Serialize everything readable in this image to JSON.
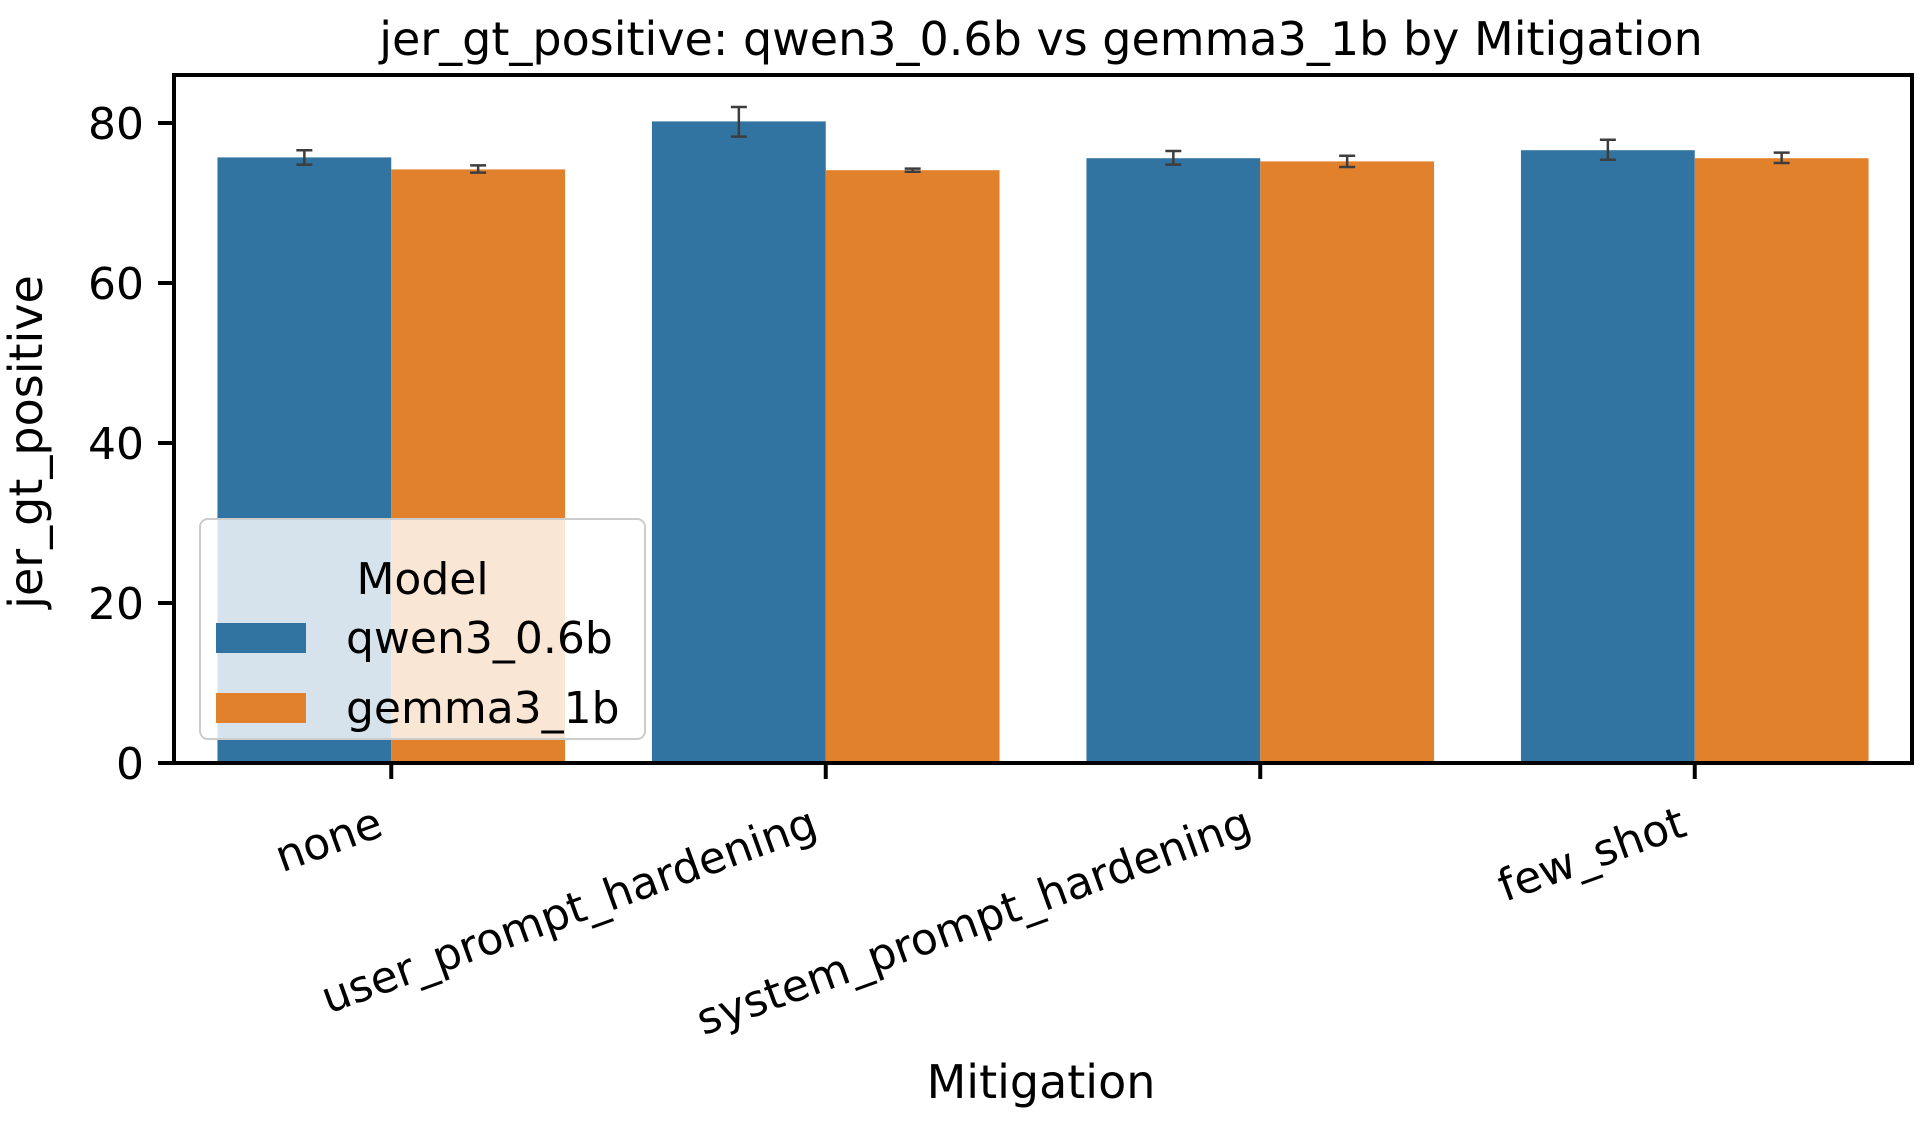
{
  "chart_data": {
    "type": "bar",
    "title": "jer_gt_positive: qwen3_0.6b vs gemma3_1b by Mitigation",
    "xlabel": "Mitigation",
    "ylabel": "jer_gt_positive",
    "categories": [
      "none",
      "user_prompt_hardening",
      "system_prompt_hardening",
      "few_shot"
    ],
    "series": [
      {
        "name": "qwen3_0.6b",
        "color": "#3274a1",
        "values": [
          75.7,
          80.2,
          75.6,
          76.6
        ],
        "err_low": [
          74.8,
          78.3,
          74.8,
          75.4
        ],
        "err_high": [
          76.6,
          82.0,
          76.5,
          77.9
        ]
      },
      {
        "name": "gemma3_1b",
        "color": "#e1812c",
        "values": [
          74.2,
          74.1,
          75.2,
          75.6
        ],
        "err_low": [
          73.8,
          73.9,
          74.5,
          75.0
        ],
        "err_high": [
          74.7,
          74.3,
          75.9,
          76.3
        ]
      }
    ],
    "ylim": [
      0,
      86
    ],
    "yticks": [
      0,
      20,
      40,
      60,
      80
    ],
    "grid": false,
    "legend": {
      "title": "Model",
      "position": "lower-left"
    }
  }
}
